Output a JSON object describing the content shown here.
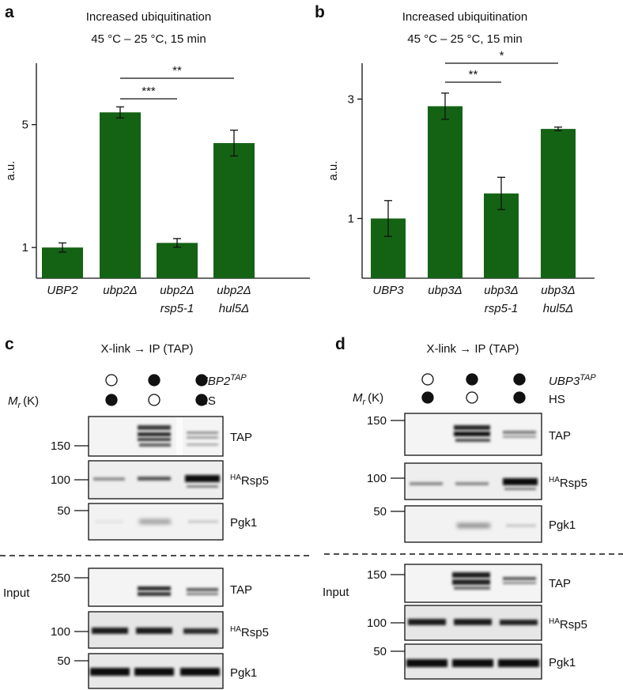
{
  "chart_data": [
    {
      "panel": "a",
      "type": "bar",
      "title": "Increased ubiquitination",
      "subtitle": "45 °C – 25 °C, 15 min",
      "ylabel": "a.u.",
      "categories": [
        [
          "UBP2"
        ],
        [
          "ubp2Δ"
        ],
        [
          "ubp2Δ",
          "rsp5-1"
        ],
        [
          "ubp2Δ",
          "hul5Δ"
        ]
      ],
      "values": [
        1.0,
        5.4,
        1.15,
        4.4
      ],
      "errors": [
        0.15,
        0.18,
        0.14,
        0.42
      ],
      "yticks": [
        1,
        5
      ],
      "ylim": [
        0,
        7
      ],
      "significance": [
        {
          "from": 1,
          "to": 2,
          "label": "***"
        },
        {
          "from": 1,
          "to": 3,
          "label": "**"
        }
      ],
      "color": "#146314"
    },
    {
      "panel": "b",
      "type": "bar",
      "title": "Increased ubiquitination",
      "subtitle": "45 °C – 25 °C, 15 min",
      "ylabel": "a.u.",
      "categories": [
        [
          "UBP3"
        ],
        [
          "ubp3Δ"
        ],
        [
          "ubp3Δ",
          "rsp5-1"
        ],
        [
          "ubp3Δ",
          "hul5Δ"
        ]
      ],
      "values": [
        1.0,
        2.88,
        1.42,
        2.5
      ],
      "errors": [
        0.3,
        0.22,
        0.27,
        0.03
      ],
      "yticks": [
        1,
        3
      ],
      "ylim": [
        0,
        3.6
      ],
      "significance": [
        {
          "from": 1,
          "to": 2,
          "label": "**"
        },
        {
          "from": 1,
          "to": 3,
          "label": "*"
        }
      ],
      "color": "#146314"
    }
  ],
  "blots": {
    "c": {
      "panel": "c",
      "header": "X-link → IP (TAP)",
      "mr_label": "M",
      "mr_sub": "r",
      "mr_unit": "(K)",
      "row1_label": "UBP2",
      "row1_sup": "TAP",
      "row1_circles": [
        0,
        1,
        1
      ],
      "row2_label": "HS",
      "row2_circles": [
        1,
        0,
        1
      ],
      "ip_markers": [
        "150",
        "100",
        "50"
      ],
      "input_label": "Input",
      "input_markers": [
        "250",
        "100",
        "50"
      ],
      "band_labels": {
        "tap": "TAP",
        "rsp5_sup": "HA",
        "rsp5": "Rsp5",
        "pgk1": "Pgk1"
      }
    },
    "d": {
      "panel": "d",
      "header": "X-link → IP (TAP)",
      "mr_label": "M",
      "mr_sub": "r",
      "mr_unit": "(K)",
      "row1_label": "UBP3",
      "row1_sup": "TAP",
      "row1_circles": [
        0,
        1,
        1
      ],
      "row2_label": "HS",
      "row2_circles": [
        1,
        0,
        1
      ],
      "ip_markers": [
        "150",
        "100",
        "50"
      ],
      "input_label": "Input",
      "input_markers": [
        "150",
        "100",
        "50"
      ],
      "band_labels": {
        "tap": "TAP",
        "rsp5_sup": "HA",
        "rsp5": "Rsp5",
        "pgk1": "Pgk1"
      }
    }
  }
}
